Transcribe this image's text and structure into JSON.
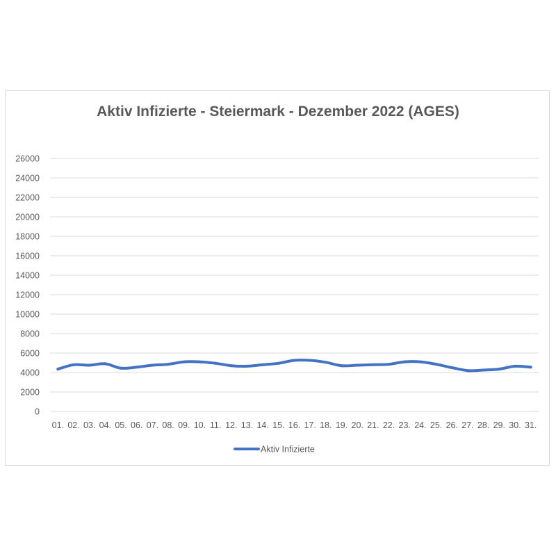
{
  "chart_data": {
    "type": "line",
    "title": "Aktiv Infizierte - Steiermark - Dezember 2022 (AGES)",
    "xlabel": "",
    "ylabel": "",
    "ylim": [
      0,
      26000
    ],
    "y_ticks": [
      0,
      2000,
      4000,
      6000,
      8000,
      10000,
      12000,
      14000,
      16000,
      18000,
      20000,
      22000,
      24000,
      26000
    ],
    "grid": true,
    "legend_position": "bottom",
    "categories": [
      "01.",
      "02.",
      "03.",
      "04.",
      "05.",
      "06.",
      "07.",
      "08.",
      "09.",
      "10.",
      "11.",
      "12.",
      "13.",
      "14.",
      "15.",
      "16.",
      "17.",
      "18.",
      "19.",
      "20.",
      "21.",
      "22.",
      "23.",
      "24.",
      "25.",
      "26.",
      "27.",
      "28.",
      "29.",
      "30.",
      "31."
    ],
    "series": [
      {
        "name": "Aktiv Infizierte",
        "color": "#4472C4",
        "values": [
          4350,
          4800,
          4750,
          4900,
          4450,
          4550,
          4750,
          4850,
          5100,
          5100,
          4950,
          4700,
          4650,
          4800,
          4950,
          5250,
          5250,
          5050,
          4700,
          4750,
          4800,
          4850,
          5100,
          5100,
          4850,
          4500,
          4200,
          4250,
          4350,
          4650,
          4550
        ]
      }
    ]
  }
}
